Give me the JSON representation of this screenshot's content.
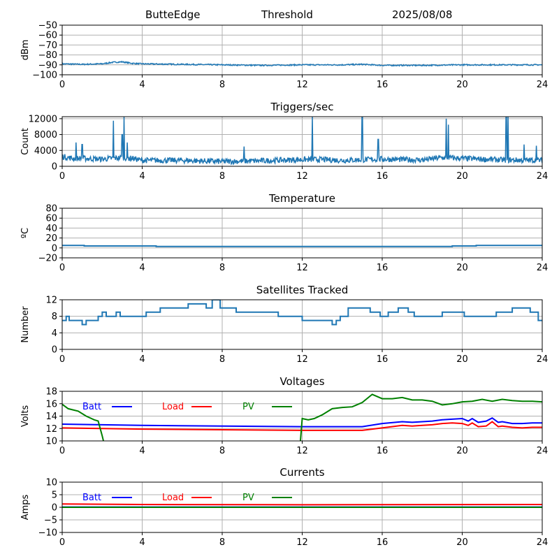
{
  "header": {
    "station": "ButteEdge",
    "mode": "Threshold",
    "date": "2025/08/08"
  },
  "colors": {
    "series": "#1f77b4",
    "batt": "#0000ff",
    "load": "#ff0000",
    "pv": "#008000",
    "grid": "#b0b0b0"
  },
  "chart_data": [
    {
      "type": "line",
      "title": "",
      "xlabel": "",
      "ylabel": "dBm",
      "xlim": [
        0,
        24
      ],
      "ylim": [
        -100,
        -50
      ],
      "xticks": [
        0,
        4,
        8,
        12,
        16,
        20,
        24
      ],
      "yticks": [
        -100,
        -90,
        -80,
        -70,
        -60,
        -50
      ],
      "grid": true,
      "series": [
        {
          "color": "#1f77b4",
          "noise": 0.6,
          "x": [
            0,
            1,
            2,
            2.5,
            3,
            3.5,
            4,
            6,
            8,
            10,
            12,
            14,
            15,
            16,
            18,
            20,
            22,
            24
          ],
          "values": [
            -89,
            -89.5,
            -89,
            -87.5,
            -87,
            -88.5,
            -89,
            -89.5,
            -90,
            -90.5,
            -90,
            -90,
            -89.5,
            -90.5,
            -90.5,
            -90,
            -90,
            -90
          ]
        }
      ]
    },
    {
      "type": "line",
      "title": "Triggers/sec",
      "xlabel": "",
      "ylabel": "Count",
      "xlim": [
        0,
        24
      ],
      "ylim": [
        0,
        12500
      ],
      "xticks": [
        0,
        4,
        8,
        12,
        16,
        20,
        24
      ],
      "yticks": [
        0,
        4000,
        8000,
        12000
      ],
      "grid": true,
      "series": [
        {
          "color": "#1f77b4",
          "noise": 700,
          "x": [
            0,
            0.5,
            1,
            2,
            3,
            3.5,
            4,
            6,
            8,
            10,
            12,
            13,
            14,
            16,
            18,
            19,
            20,
            22,
            24
          ],
          "values": [
            2500,
            2000,
            2000,
            1800,
            2200,
            2000,
            1500,
            1500,
            1200,
            1400,
            1700,
            1700,
            1500,
            1800,
            1600,
            2200,
            2000,
            1600,
            1500
          ],
          "spikes": [
            [
              0.7,
              6000
            ],
            [
              1.0,
              5500
            ],
            [
              2.55,
              11500
            ],
            [
              3.0,
              8000
            ],
            [
              3.1,
              12500
            ],
            [
              3.25,
              6000
            ],
            [
              9.1,
              5000
            ],
            [
              12.5,
              12500
            ],
            [
              15.0,
              12500
            ],
            [
              15.8,
              6800
            ],
            [
              19.2,
              12000
            ],
            [
              19.3,
              10500
            ],
            [
              22.2,
              12500
            ],
            [
              22.3,
              12500
            ],
            [
              23.1,
              5500
            ],
            [
              23.7,
              5200
            ]
          ]
        }
      ]
    },
    {
      "type": "line",
      "title": "Temperature",
      "xlabel": "",
      "ylabel": "ºC",
      "xlim": [
        0,
        24
      ],
      "ylim": [
        -20,
        80
      ],
      "xticks": [
        0,
        4,
        8,
        12,
        16,
        20,
        24
      ],
      "yticks": [
        -20,
        0,
        20,
        40,
        60,
        80
      ],
      "grid": true,
      "series": [
        {
          "color": "#1f77b4",
          "step": true,
          "x": [
            0,
            1.1,
            4.7,
            16.8,
            19.5,
            20.7,
            24
          ],
          "values": [
            5,
            4,
            3,
            3,
            4,
            5,
            4
          ]
        }
      ]
    },
    {
      "type": "line",
      "title": "Satellites Tracked",
      "xlabel": "",
      "ylabel": "Number",
      "xlim": [
        0,
        24
      ],
      "ylim": [
        0,
        12
      ],
      "xticks": [
        0,
        4,
        8,
        12,
        16,
        20,
        24
      ],
      "yticks": [
        0,
        4,
        8,
        12
      ],
      "grid": true,
      "series": [
        {
          "color": "#1f77b4",
          "step": true,
          "x": [
            0,
            0.2,
            0.35,
            0.8,
            1.0,
            1.2,
            1.8,
            2.0,
            2.2,
            2.6,
            2.7,
            2.9,
            3.8,
            4.2,
            4.4,
            4.9,
            5.3,
            5.7,
            5.9,
            6.3,
            6.8,
            7.2,
            7.5,
            7.9,
            8.7,
            9.3,
            10.2,
            10.8,
            11.6,
            12.0,
            12.3,
            13.0,
            13.5,
            13.7,
            13.9,
            14.3,
            14.9,
            15.4,
            15.9,
            16.3,
            16.8,
            17.3,
            17.6,
            18.7,
            19.0,
            20.1,
            20.5,
            21.0,
            21.7,
            22.5,
            23.4,
            23.8,
            24
          ],
          "values": [
            7,
            8,
            7,
            7,
            6,
            7,
            8,
            9,
            8,
            8,
            9,
            8,
            8,
            9,
            9,
            10,
            10,
            10,
            10,
            11,
            11,
            10,
            12,
            10,
            9,
            9,
            9,
            8,
            8,
            7,
            7,
            7,
            6,
            7,
            8,
            10,
            10,
            9,
            8,
            9,
            10,
            9,
            8,
            8,
            9,
            8,
            8,
            8,
            9,
            10,
            9,
            7,
            7
          ]
        }
      ]
    },
    {
      "type": "line",
      "title": "Voltages",
      "xlabel": "",
      "ylabel": "Volts",
      "xlim": [
        0,
        24
      ],
      "ylim": [
        10,
        18
      ],
      "xticks": [
        0,
        4,
        8,
        12,
        16,
        20,
        24
      ],
      "yticks": [
        10,
        12,
        14,
        16,
        18
      ],
      "grid": true,
      "legend": "top",
      "series": [
        {
          "name": "Batt",
          "color": "#0000ff",
          "x": [
            0,
            2,
            4,
            8,
            12,
            15,
            16,
            17,
            17.5,
            18,
            18.5,
            19,
            19.5,
            20,
            20.3,
            20.5,
            20.8,
            21.2,
            21.5,
            21.8,
            22,
            22.5,
            23,
            23.5,
            24
          ],
          "values": [
            12.7,
            12.6,
            12.5,
            12.4,
            12.3,
            12.3,
            12.8,
            13.1,
            13.0,
            13.1,
            13.2,
            13.4,
            13.5,
            13.6,
            13.2,
            13.6,
            13.0,
            13.2,
            13.7,
            13.0,
            13.1,
            12.8,
            12.8,
            12.9,
            12.9
          ]
        },
        {
          "name": "Load",
          "color": "#ff0000",
          "x": [
            0,
            2,
            4,
            8,
            12,
            15,
            16,
            17,
            17.5,
            18,
            18.5,
            19,
            19.5,
            20,
            20.3,
            20.5,
            20.8,
            21.2,
            21.5,
            21.8,
            22,
            22.5,
            23,
            23.5,
            24
          ],
          "values": [
            12.1,
            12.0,
            11.9,
            11.8,
            11.7,
            11.7,
            12.1,
            12.5,
            12.4,
            12.5,
            12.6,
            12.8,
            12.9,
            12.8,
            12.5,
            12.9,
            12.3,
            12.4,
            13.1,
            12.3,
            12.4,
            12.2,
            12.1,
            12.2,
            12.2
          ]
        },
        {
          "name": "PV",
          "color": "#008000",
          "x": [
            0,
            0.3,
            0.8,
            1.2,
            1.6,
            1.8,
            2.0,
            2.1,
            null,
            11.9,
            12.0,
            12.3,
            12.6,
            13.0,
            13.5,
            14.0,
            14.5,
            15.0,
            15.5,
            16.0,
            16.5,
            17.0,
            17.5,
            18.0,
            18.5,
            19.0,
            19.5,
            20.0,
            20.5,
            21.0,
            21.5,
            22.0,
            22.5,
            23.0,
            23.5,
            24.0
          ],
          "values": [
            15.9,
            15.2,
            14.8,
            14.0,
            13.4,
            13.2,
            10.8,
            9.5,
            null,
            9.5,
            13.6,
            13.4,
            13.6,
            14.2,
            15.2,
            15.4,
            15.5,
            16.2,
            17.5,
            16.8,
            16.8,
            17.0,
            16.6,
            16.6,
            16.4,
            15.8,
            16.0,
            16.3,
            16.4,
            16.7,
            16.4,
            16.7,
            16.5,
            16.4,
            16.4,
            16.3
          ]
        }
      ]
    },
    {
      "type": "line",
      "title": "Currents",
      "xlabel": "",
      "ylabel": "Amps",
      "xlim": [
        0,
        24
      ],
      "ylim": [
        -10,
        10
      ],
      "xticks": [
        0,
        4,
        8,
        12,
        16,
        20,
        24
      ],
      "yticks": [
        -10,
        -5,
        0,
        5,
        10
      ],
      "grid": true,
      "legend": "top",
      "series": [
        {
          "name": "Batt",
          "color": "#0000ff",
          "x": [
            0,
            24
          ],
          "values": [
            0.1,
            0.1
          ]
        },
        {
          "name": "Load",
          "color": "#ff0000",
          "x": [
            0,
            4,
            12,
            24
          ],
          "values": [
            1.3,
            1.1,
            1.0,
            1.1
          ]
        },
        {
          "name": "PV",
          "color": "#008000",
          "x": [
            0,
            24
          ],
          "values": [
            0.0,
            0.0
          ]
        }
      ]
    }
  ]
}
